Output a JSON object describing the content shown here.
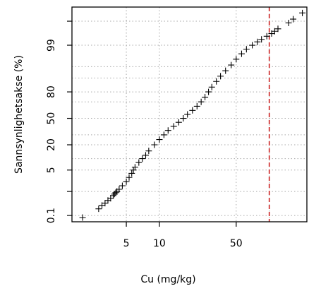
{
  "chart_data": {
    "type": "scatter",
    "title": "",
    "xlabel": "Cu (mg/kg)",
    "ylabel": "Sannsynlighetsakse (%)",
    "x_scale": "log10",
    "y_scale": "normal-probability",
    "xlim": [
      1.6,
      220
    ],
    "ylim": [
      0.05,
      99.98
    ],
    "x_ticks": [
      {
        "value": 5,
        "label": "5"
      },
      {
        "value": 10,
        "label": "10"
      },
      {
        "value": 50,
        "label": "50"
      }
    ],
    "y_ticks": [
      {
        "value": 0.1,
        "label": "0.1"
      },
      {
        "value": 5,
        "label": "5"
      },
      {
        "value": 20,
        "label": "20"
      },
      {
        "value": 50,
        "label": "50"
      },
      {
        "value": 80,
        "label": "80"
      },
      {
        "value": 99,
        "label": "99"
      }
    ],
    "x_gridlines": [
      5,
      10,
      50,
      100
    ],
    "y_gridlines": [
      0.1,
      1,
      5,
      10,
      20,
      30,
      50,
      70,
      80,
      90,
      95,
      99,
      99.9
    ],
    "y_minor_ticks": [
      1,
      99.9
    ],
    "grid": true,
    "reference_line": {
      "x": 100,
      "color": "#cc2222",
      "style": "dashed"
    },
    "marker": "+",
    "series": [
      {
        "x": [
          2.0,
          2.8,
          3.0,
          3.2,
          3.4,
          3.6,
          3.8,
          3.9,
          4.0,
          4.1,
          4.3,
          4.6,
          5.0,
          5.3,
          5.6,
          5.8,
          6.0,
          6.5,
          7.0,
          7.5,
          8.0,
          9.0,
          10.0,
          11.0,
          12.0,
          13.5,
          15.0,
          16.5,
          18.0,
          20.0,
          22.0,
          24.0,
          26.0,
          28.0,
          30.0,
          33.0,
          36.0,
          40.0,
          45.0,
          50.0,
          56.0,
          62.0,
          70.0,
          78.0,
          85.0,
          95.0,
          105.0,
          112.0,
          120.0,
          150.0,
          165.0,
          200.0
        ],
        "y": [
          0.08,
          0.2,
          0.28,
          0.35,
          0.45,
          0.55,
          0.7,
          0.8,
          0.9,
          1.0,
          1.2,
          1.6,
          2.2,
          3.0,
          4.0,
          5.0,
          6.0,
          8.0,
          10.0,
          12.0,
          15.0,
          20.0,
          25.0,
          30.0,
          35.0,
          40.0,
          45.0,
          50.0,
          55.0,
          60.0,
          65.0,
          70.0,
          75.0,
          80.0,
          84.0,
          88.0,
          91.0,
          93.5,
          95.5,
          97.0,
          98.0,
          98.6,
          99.0,
          99.25,
          99.4,
          99.55,
          99.65,
          99.72,
          99.78,
          99.88,
          99.92,
          99.96
        ]
      }
    ]
  }
}
